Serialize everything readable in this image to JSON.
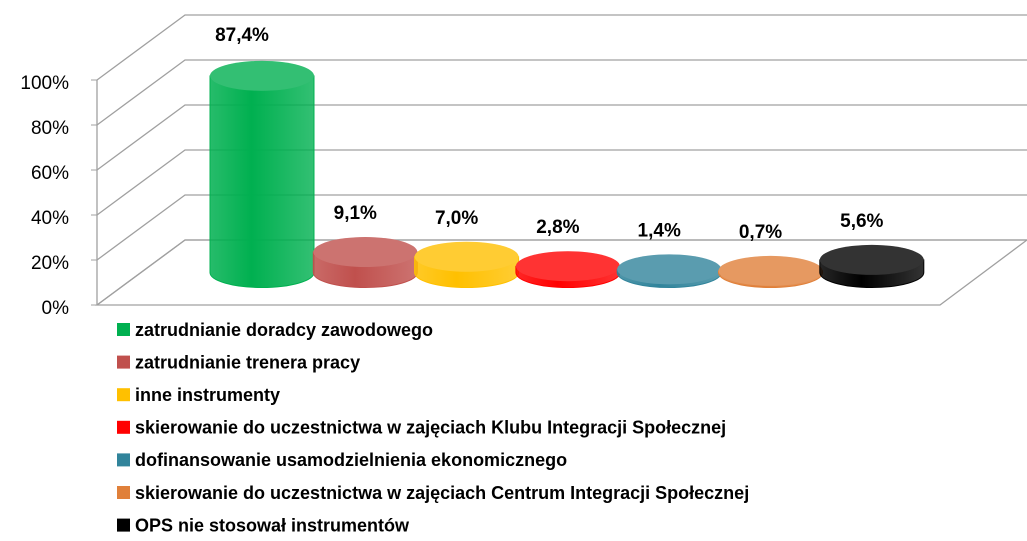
{
  "chart_data": {
    "type": "bar3d",
    "categories": [
      "zatrudnianie doradcy zawodowego",
      "zatrudnianie trenera pracy",
      "inne instrumenty",
      "skierowanie do uczestnictwa w zajęciach Klubu Integracji Społecznej",
      "dofinansowanie usamodzielnienia ekonomicznego",
      "skierowanie do uczestnictwa w zajęciach Centrum Integracji Społecznej",
      "OPS nie stosował instrumentów"
    ],
    "values": [
      87.4,
      9.1,
      7.0,
      2.8,
      1.4,
      0.7,
      5.6
    ],
    "value_labels": [
      "87,4%",
      "9,1%",
      "7,0%",
      "2,8%",
      "1,4%",
      "0,7%",
      "5,6%"
    ],
    "colors": [
      "#00b050",
      "#c0504d",
      "#ffc000",
      "#ff0000",
      "#31849b",
      "#e0803a",
      "#000000"
    ],
    "ylim": [
      0,
      100
    ],
    "yticks": [
      {
        "value": 0,
        "label": "0%"
      },
      {
        "value": 20,
        "label": "20%"
      },
      {
        "value": 40,
        "label": "40%"
      },
      {
        "value": 60,
        "label": "60%"
      },
      {
        "value": 80,
        "label": "80%"
      },
      {
        "value": 100,
        "label": "100%"
      }
    ],
    "grid": true,
    "legend": "bottom"
  }
}
